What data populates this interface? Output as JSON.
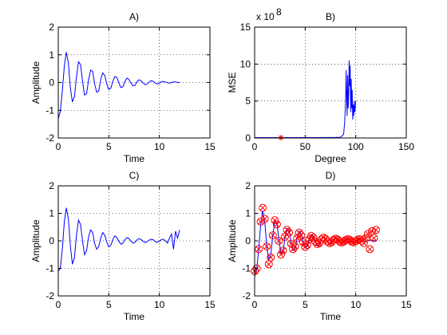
{
  "chart_data": [
    {
      "panel": "A",
      "type": "line",
      "title": "A)",
      "xlabel": "Time",
      "ylabel": "Amplitude",
      "xlim": [
        0,
        15
      ],
      "ylim": [
        -2,
        2
      ],
      "xticks": [
        0,
        5,
        10,
        15
      ],
      "yticks": [
        -2,
        -1,
        0,
        1,
        2
      ],
      "grid": true,
      "series": [
        {
          "color": "#0000ff",
          "x": [
            0.0,
            0.2,
            0.4,
            0.6,
            0.8,
            1.0,
            1.2,
            1.4,
            1.6,
            1.8,
            2.0,
            2.2,
            2.4,
            2.6,
            2.8,
            3.0,
            3.2,
            3.4,
            3.6,
            3.8,
            4.0,
            4.2,
            4.4,
            4.6,
            4.8,
            5.0,
            5.2,
            5.4,
            5.6,
            5.8,
            6.0,
            6.2,
            6.4,
            6.6,
            6.8,
            7.0,
            7.2,
            7.4,
            7.6,
            7.8,
            8.0,
            8.2,
            8.4,
            8.6,
            8.8,
            9.0,
            9.2,
            9.4,
            9.6,
            9.8,
            10.0,
            10.2,
            10.4,
            10.6,
            10.8,
            11.0,
            11.2,
            11.4,
            11.6,
            11.8,
            12.0
          ],
          "y": [
            -1.3,
            -1.05,
            -0.3,
            0.6,
            1.1,
            0.7,
            -0.2,
            -0.7,
            -0.5,
            0.2,
            0.75,
            0.65,
            0.05,
            -0.45,
            -0.4,
            0.1,
            0.45,
            0.4,
            -0.05,
            -0.35,
            -0.3,
            0.1,
            0.35,
            0.25,
            -0.05,
            -0.25,
            -0.2,
            0.05,
            0.22,
            0.18,
            -0.02,
            -0.18,
            -0.15,
            0.05,
            0.16,
            0.1,
            -0.02,
            -0.12,
            -0.1,
            0.04,
            0.1,
            0.06,
            -0.02,
            -0.08,
            -0.05,
            0.03,
            0.07,
            0.04,
            -0.02,
            -0.05,
            -0.02,
            0.03,
            0.04,
            0.02,
            -0.01,
            -0.02,
            0.0,
            0.02,
            0.02,
            0.01,
            0.0
          ]
        }
      ]
    },
    {
      "panel": "B",
      "type": "line",
      "title": "B)",
      "xlabel": "Degree",
      "ylabel": "MSE",
      "scale_label": "x 10",
      "scale_exponent": "8",
      "xlim": [
        0,
        150
      ],
      "ylim": [
        0,
        15
      ],
      "xticks": [
        0,
        50,
        100,
        150
      ],
      "yticks": [
        0,
        5,
        10,
        15
      ],
      "grid": true,
      "series": [
        {
          "color": "#0000ff",
          "x": [
            0,
            10,
            20,
            30,
            40,
            50,
            60,
            70,
            80,
            85,
            88,
            89,
            90,
            90.5,
            91,
            91.5,
            92,
            92.5,
            93,
            93.5,
            94,
            94.5,
            95,
            95.5,
            96,
            96.5,
            97,
            97.5,
            98,
            98.5,
            99,
            99.5,
            100
          ],
          "y": [
            0.05,
            0.05,
            0.05,
            0.05,
            0.05,
            0.05,
            0.05,
            0.06,
            0.08,
            0.1,
            0.5,
            2.0,
            5.0,
            9.2,
            5.5,
            3.0,
            8.5,
            4.0,
            6.0,
            10.5,
            7.0,
            9.8,
            3.5,
            8.0,
            4.0,
            6.5,
            2.5,
            4.5,
            3.0,
            5.0,
            3.5,
            4.0,
            5.0
          ]
        }
      ],
      "marker_series": [
        {
          "color": "#ff0000",
          "marker": "asterisk",
          "x": [
            26
          ],
          "y": [
            0.05
          ]
        }
      ]
    },
    {
      "panel": "C",
      "type": "line",
      "title": "C)",
      "xlabel": "Time",
      "ylabel": "Amplitude",
      "xlim": [
        0,
        15
      ],
      "ylim": [
        -2,
        2
      ],
      "xticks": [
        0,
        5,
        10,
        15
      ],
      "yticks": [
        -2,
        -1,
        0,
        1,
        2
      ],
      "grid": true,
      "series": [
        {
          "color": "#0000ff",
          "x": [
            0.0,
            0.2,
            0.4,
            0.6,
            0.8,
            1.0,
            1.2,
            1.4,
            1.6,
            1.8,
            2.0,
            2.2,
            2.4,
            2.6,
            2.8,
            3.0,
            3.2,
            3.4,
            3.6,
            3.8,
            4.0,
            4.2,
            4.4,
            4.6,
            4.8,
            5.0,
            5.2,
            5.4,
            5.6,
            5.8,
            6.0,
            6.2,
            6.4,
            6.6,
            6.8,
            7.0,
            7.2,
            7.4,
            7.6,
            7.8,
            8.0,
            8.2,
            8.4,
            8.6,
            8.8,
            9.0,
            9.2,
            9.4,
            9.6,
            9.8,
            10.0,
            10.2,
            10.4,
            10.6,
            10.8,
            11.0,
            11.2,
            11.4,
            11.6,
            11.8,
            12.0
          ],
          "y": [
            -1.1,
            -1.0,
            -0.3,
            0.7,
            1.2,
            0.8,
            -0.2,
            -0.85,
            -0.6,
            0.2,
            0.75,
            0.6,
            0.0,
            -0.5,
            -0.35,
            0.15,
            0.4,
            0.3,
            -0.1,
            -0.3,
            -0.2,
            0.1,
            0.3,
            0.2,
            -0.05,
            -0.22,
            -0.15,
            0.05,
            0.18,
            0.12,
            -0.02,
            -0.12,
            -0.08,
            0.05,
            0.12,
            0.08,
            -0.02,
            -0.08,
            -0.05,
            0.04,
            0.08,
            0.05,
            -0.02,
            -0.06,
            -0.03,
            0.03,
            0.06,
            0.04,
            -0.03,
            -0.05,
            -0.01,
            0.05,
            0.06,
            0.0,
            -0.08,
            0.1,
            0.25,
            -0.3,
            0.35,
            0.1,
            0.4
          ]
        }
      ]
    },
    {
      "panel": "D",
      "type": "line",
      "title": "D)",
      "xlabel": "Time",
      "ylabel": "Amplitude",
      "xlim": [
        0,
        15
      ],
      "ylim": [
        -2,
        2
      ],
      "xticks": [
        0,
        5,
        10,
        15
      ],
      "yticks": [
        -2,
        -1,
        0,
        1,
        2
      ],
      "grid": true,
      "series": [
        {
          "color": "#0000ff",
          "x": [
            0.0,
            0.2,
            0.4,
            0.6,
            0.8,
            1.0,
            1.2,
            1.4,
            1.6,
            1.8,
            2.0,
            2.2,
            2.4,
            2.6,
            2.8,
            3.0,
            3.2,
            3.4,
            3.6,
            3.8,
            4.0,
            4.2,
            4.4,
            4.6,
            4.8,
            5.0,
            5.2,
            5.4,
            5.6,
            5.8,
            6.0,
            6.2,
            6.4,
            6.6,
            6.8,
            7.0,
            7.2,
            7.4,
            7.6,
            7.8,
            8.0,
            8.2,
            8.4,
            8.6,
            8.8,
            9.0,
            9.2,
            9.4,
            9.6,
            9.8,
            10.0,
            10.2,
            10.4,
            10.6,
            10.8,
            11.0,
            11.2,
            11.4,
            11.6,
            11.8,
            12.0
          ],
          "y": [
            -1.3,
            -1.05,
            -0.3,
            0.6,
            1.1,
            0.7,
            -0.2,
            -0.7,
            -0.5,
            0.2,
            0.75,
            0.65,
            0.05,
            -0.45,
            -0.4,
            0.1,
            0.45,
            0.4,
            -0.05,
            -0.35,
            -0.3,
            0.1,
            0.35,
            0.25,
            -0.05,
            -0.25,
            -0.2,
            0.05,
            0.22,
            0.18,
            -0.02,
            -0.18,
            -0.15,
            0.05,
            0.16,
            0.1,
            -0.02,
            -0.12,
            -0.1,
            0.04,
            0.1,
            0.06,
            -0.02,
            -0.08,
            -0.05,
            0.03,
            0.07,
            0.04,
            -0.02,
            -0.05,
            -0.02,
            0.03,
            0.04,
            0.02,
            -0.01,
            -0.02,
            0.0,
            0.02,
            0.02,
            0.01,
            0.0
          ]
        }
      ],
      "marker_series": [
        {
          "color": "#ff0000",
          "marker": "circle-x",
          "x": [
            0.0,
            0.2,
            0.4,
            0.6,
            0.8,
            1.0,
            1.2,
            1.4,
            1.6,
            1.8,
            2.0,
            2.2,
            2.4,
            2.6,
            2.8,
            3.0,
            3.2,
            3.4,
            3.6,
            3.8,
            4.0,
            4.2,
            4.4,
            4.6,
            4.8,
            5.0,
            5.2,
            5.4,
            5.6,
            5.8,
            6.0,
            6.2,
            6.4,
            6.6,
            6.8,
            7.0,
            7.2,
            7.4,
            7.6,
            7.8,
            8.0,
            8.2,
            8.4,
            8.6,
            8.8,
            9.0,
            9.2,
            9.4,
            9.6,
            9.8,
            10.0,
            10.2,
            10.4,
            10.6,
            10.8,
            11.0,
            11.2,
            11.4,
            11.6,
            11.8,
            12.0
          ],
          "y": [
            -1.1,
            -1.0,
            -0.3,
            0.7,
            1.2,
            0.8,
            -0.2,
            -0.85,
            -0.6,
            0.2,
            0.75,
            0.6,
            0.0,
            -0.5,
            -0.35,
            0.15,
            0.4,
            0.3,
            -0.1,
            -0.3,
            -0.2,
            0.1,
            0.3,
            0.2,
            -0.05,
            -0.22,
            -0.15,
            0.05,
            0.18,
            0.12,
            -0.02,
            -0.12,
            -0.08,
            0.05,
            0.12,
            0.08,
            -0.02,
            -0.08,
            -0.05,
            0.04,
            0.08,
            0.05,
            -0.02,
            -0.06,
            -0.03,
            0.03,
            0.06,
            0.04,
            -0.03,
            -0.05,
            -0.01,
            0.05,
            0.06,
            0.0,
            -0.08,
            0.1,
            0.25,
            -0.3,
            0.35,
            0.1,
            0.4
          ]
        }
      ]
    }
  ]
}
